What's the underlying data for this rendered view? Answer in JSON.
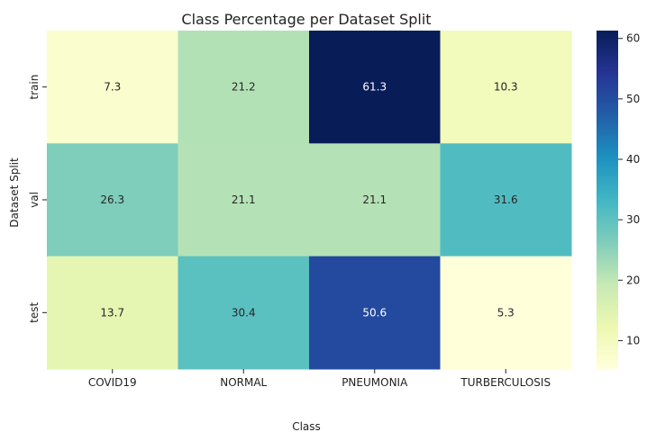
{
  "chart_data": {
    "type": "heatmap",
    "title": "Class Percentage per Dataset Split",
    "xlabel": "Class",
    "ylabel": "Dataset Split",
    "x_categories": [
      "COVID19",
      "NORMAL",
      "PNEUMONIA",
      "TURBERCULOSIS"
    ],
    "y_categories": [
      "train",
      "val",
      "test"
    ],
    "values": [
      [
        7.3,
        21.2,
        61.3,
        10.3
      ],
      [
        26.3,
        21.1,
        21.1,
        31.6
      ],
      [
        13.7,
        30.4,
        50.6,
        5.3
      ]
    ],
    "colormap": "YlGnBu",
    "color_range": [
      5.3,
      61.3
    ],
    "colorbar_ticks": [
      10,
      20,
      30,
      40,
      50,
      60
    ]
  }
}
